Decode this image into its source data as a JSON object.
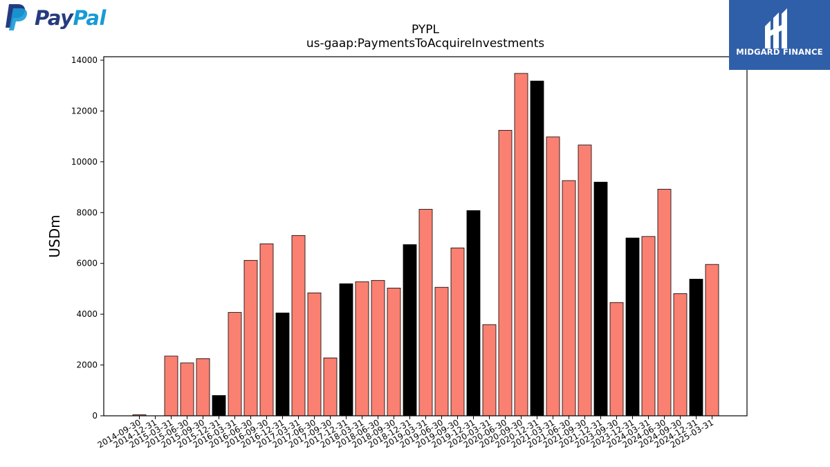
{
  "header": {
    "paypal_logo": {
      "text_pay": "Pay",
      "text_pal": "Pal",
      "colors": {
        "dark": "#253b80",
        "light": "#179bd7"
      }
    },
    "midgard_logo": {
      "name": "MIDGARD FINANCE",
      "background": "#2f5fa8"
    }
  },
  "chart_data": {
    "type": "bar",
    "title": "PYPL",
    "subtitle": "us-gaap:PaymentsToAcquireInvestments",
    "xlabel": "",
    "ylabel": "USDm",
    "ylim": [
      0,
      14000
    ],
    "yticks": [
      0,
      2000,
      4000,
      6000,
      8000,
      10000,
      12000,
      14000
    ],
    "grid": false,
    "colors": {
      "quarter": "#fa8072",
      "year_end": "#000000"
    },
    "categories": [
      "2014-09-30",
      "2014-12-31",
      "2015-03-31",
      "2015-06-30",
      "2015-09-30",
      "2015-12-31",
      "2016-03-31",
      "2016-06-30",
      "2016-09-30",
      "2016-12-31",
      "2017-03-31",
      "2017-06-30",
      "2017-09-30",
      "2017-12-31",
      "2018-03-31",
      "2018-06-30",
      "2018-09-30",
      "2018-12-31",
      "2019-03-31",
      "2019-06-30",
      "2019-09-30",
      "2019-12-31",
      "2020-03-31",
      "2020-06-30",
      "2020-09-30",
      "2020-12-31",
      "2021-03-31",
      "2021-06-30",
      "2021-09-30",
      "2021-12-31",
      "2023-09-30",
      "2023-12-31",
      "2024-03-31",
      "2024-06-30",
      "2024-09-30",
      "2024-12-31",
      "2025-03-31"
    ],
    "values": [
      40,
      0,
      2350,
      2080,
      2250,
      800,
      4070,
      6120,
      6770,
      4050,
      7100,
      4840,
      2280,
      5200,
      5280,
      5330,
      5030,
      6740,
      8130,
      5060,
      6610,
      8080,
      3590,
      11240,
      13480,
      13180,
      10980,
      9260,
      10660,
      9200,
      4460,
      7000,
      7060,
      8920,
      4810,
      5380,
      5960
    ],
    "highlight": [
      false,
      true,
      false,
      false,
      false,
      true,
      false,
      false,
      false,
      true,
      false,
      false,
      false,
      true,
      false,
      false,
      false,
      true,
      false,
      false,
      false,
      true,
      false,
      false,
      false,
      true,
      false,
      false,
      false,
      true,
      false,
      true,
      false,
      false,
      false,
      true,
      false
    ]
  }
}
